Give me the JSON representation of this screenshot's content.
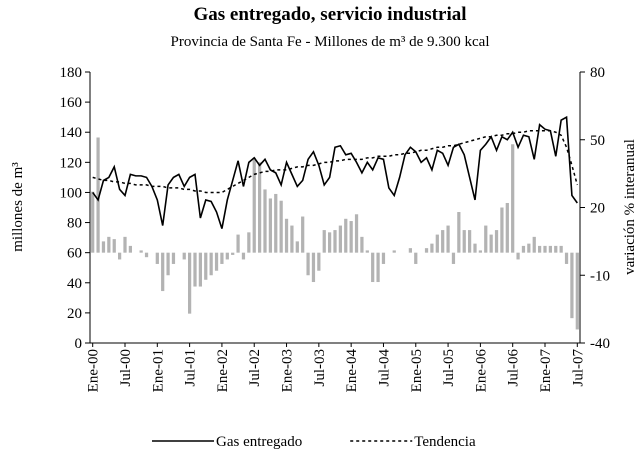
{
  "chart_data": {
    "type": "bar_line",
    "title": "Gas entregado, servicio industrial",
    "subtitle": "Provincia de Santa Fe - Millones de m³ de 9.300 kcal",
    "ylabel": "millones de m³",
    "y2label": "variación % interanual",
    "categories": [
      "Ene-00",
      null,
      null,
      null,
      null,
      null,
      "Jul-00",
      null,
      null,
      null,
      null,
      null,
      "Ene-01",
      null,
      null,
      null,
      null,
      null,
      "Jul-01",
      null,
      null,
      null,
      null,
      null,
      "Ene-02",
      null,
      null,
      null,
      null,
      null,
      "Jul-02",
      null,
      null,
      null,
      null,
      null,
      "Ene-03",
      null,
      null,
      null,
      null,
      null,
      "Jul-03",
      null,
      null,
      null,
      null,
      null,
      "Ene-04",
      null,
      null,
      null,
      null,
      null,
      "Jul-04",
      null,
      null,
      null,
      null,
      null,
      "Ene-05",
      null,
      null,
      null,
      null,
      null,
      "Jul-05",
      null,
      null,
      null,
      null,
      null,
      "Ene-06",
      null,
      null,
      null,
      null,
      null,
      "Jul-06",
      null,
      null,
      null,
      null,
      null,
      "Ene-07",
      null,
      null,
      null,
      null,
      null,
      "Jul-07"
    ],
    "ylim": [
      0,
      180
    ],
    "yticks": [
      0,
      20,
      40,
      60,
      80,
      100,
      120,
      140,
      160,
      180
    ],
    "y2lim": [
      -40,
      80
    ],
    "y2ticks": [
      -40,
      -10,
      20,
      50,
      80
    ],
    "series": [
      {
        "type": "bar",
        "axis": "y2",
        "color": "#b3b3b3",
        "values": [
          27,
          51,
          5,
          7,
          6,
          -3,
          7,
          3,
          0,
          1,
          -2,
          0,
          -5,
          -17,
          -10,
          -5,
          0,
          -3,
          -27,
          -15,
          -15,
          -12,
          -10,
          -8,
          -5,
          -3,
          -1,
          8,
          -3,
          9,
          42,
          40,
          28,
          24,
          26,
          23,
          15,
          12,
          5,
          16,
          -10,
          -13,
          -8,
          10,
          9,
          10,
          12,
          15,
          14,
          17,
          7,
          1,
          -13,
          -13,
          -5,
          0,
          1,
          0,
          0,
          2,
          -5,
          0,
          2,
          4,
          8,
          10,
          12,
          -5,
          18,
          10,
          10,
          4,
          1,
          12,
          8,
          10,
          20,
          22,
          48,
          -3,
          3,
          4,
          7,
          3,
          3,
          3,
          3,
          3,
          -5,
          -29,
          -34
        ]
      },
      {
        "type": "line",
        "name": "Gas entregado",
        "color": "#000000",
        "dash": false,
        "values": [
          100,
          95,
          108,
          110,
          117,
          102,
          98,
          112,
          111,
          111,
          110,
          104,
          95,
          78,
          105,
          110,
          112,
          104,
          110,
          112,
          83,
          95,
          94,
          87,
          76,
          95,
          108,
          121,
          104,
          120,
          123,
          118,
          122,
          115,
          113,
          105,
          120,
          112,
          104,
          108,
          122,
          127,
          118,
          105,
          110,
          130,
          131,
          125,
          126,
          120,
          113,
          120,
          115,
          123,
          122,
          103,
          98,
          110,
          125,
          130,
          127,
          120,
          123,
          115,
          128,
          126,
          118,
          130,
          132,
          125,
          110,
          95,
          128,
          132,
          137,
          128,
          137,
          135,
          140,
          130,
          138,
          137,
          122,
          145,
          142,
          141,
          124,
          148,
          150,
          98,
          93
        ]
      },
      {
        "type": "line",
        "name": "Tendencia",
        "color": "#000000",
        "dash": true,
        "values": [
          110,
          109,
          108,
          108,
          107,
          107,
          106,
          106,
          105,
          105,
          105,
          104,
          104,
          104,
          103,
          103,
          103,
          102,
          102,
          101,
          101,
          100,
          100,
          100,
          100,
          102,
          104,
          106,
          108,
          110,
          112,
          113,
          114,
          114,
          115,
          115,
          115,
          116,
          117,
          117,
          118,
          118,
          119,
          120,
          120,
          121,
          121,
          122,
          122,
          122,
          122,
          123,
          123,
          124,
          124,
          124,
          125,
          125,
          126,
          126,
          127,
          128,
          128,
          129,
          130,
          130,
          131,
          131,
          132,
          133,
          134,
          135,
          136,
          137,
          137,
          138,
          138,
          139,
          139,
          140,
          140,
          141,
          141,
          141,
          141,
          141,
          140,
          138,
          130,
          118,
          105
        ]
      }
    ],
    "legend": "bottom"
  }
}
